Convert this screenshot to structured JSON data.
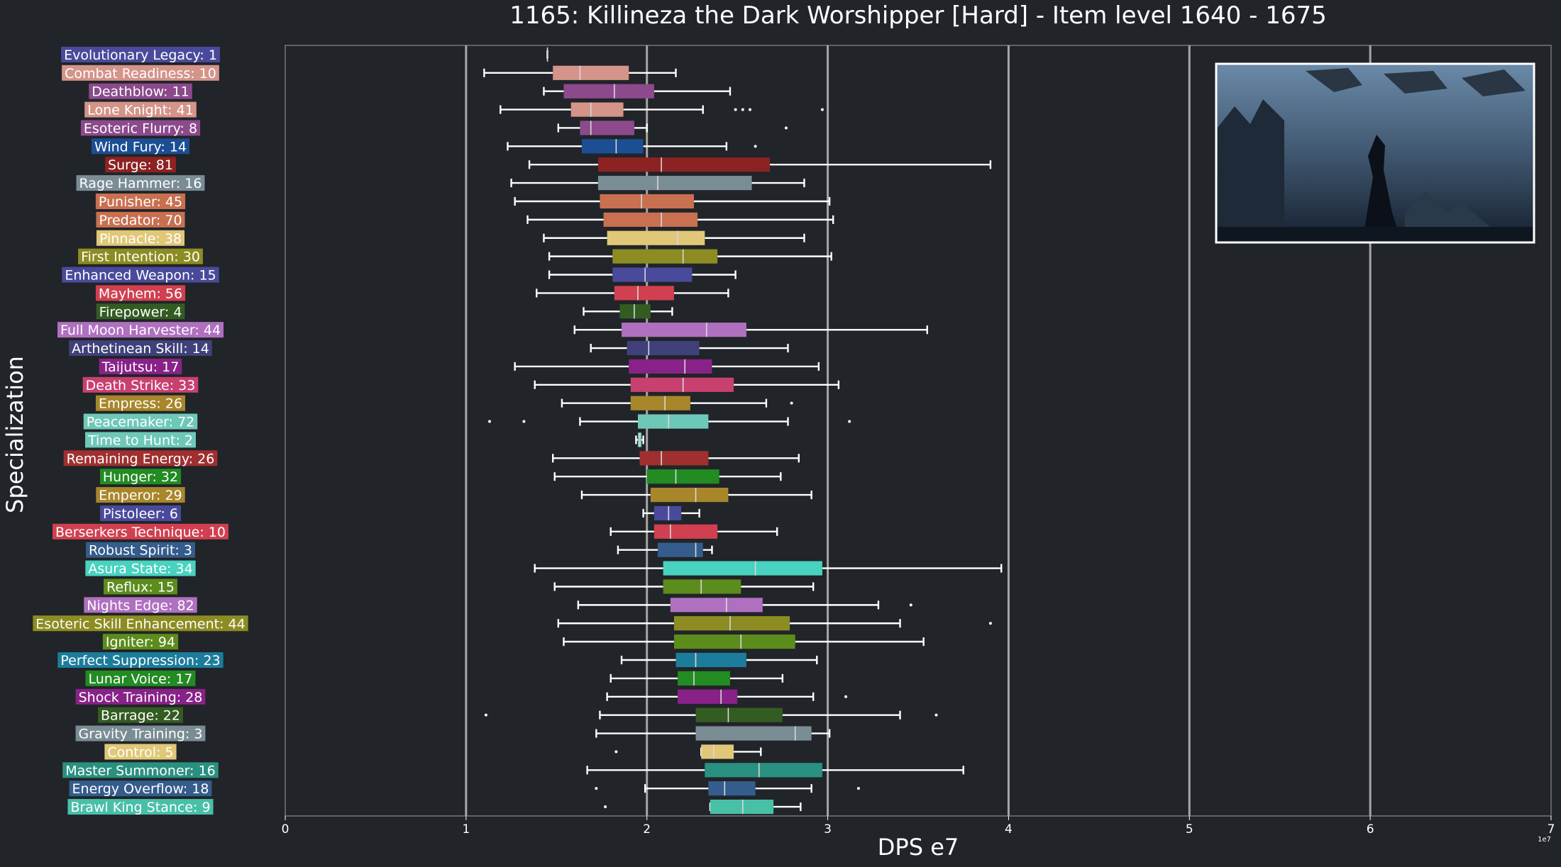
{
  "chart_data": {
    "type": "box",
    "title": "1165: Killineza the Dark Worshipper [Hard] - Item level 1640 - 1675",
    "xlabel": "DPS e7",
    "ylabel": "Specialization",
    "x_multiplier_label": "1e7",
    "xlim": [
      0,
      7
    ],
    "xticks": [
      0,
      1,
      2,
      3,
      4,
      5,
      6,
      7
    ],
    "grid": "vertical",
    "colors": {
      "background": "#212428",
      "grid": "#a6a6a6",
      "whisker": "#ffffff"
    },
    "inset_image": "boss-screenshot",
    "series": [
      {
        "label": "Evolutionary Legacy: 1",
        "color": "#4a4a9c",
        "q1": 1.45,
        "median": 1.45,
        "q3": 1.45,
        "whislo": 1.45,
        "whishi": 1.45,
        "fliers": []
      },
      {
        "label": "Combat Readiness: 10",
        "color": "#d4948a",
        "q1": 1.48,
        "median": 1.63,
        "q3": 1.9,
        "whislo": 1.1,
        "whishi": 2.16,
        "fliers": []
      },
      {
        "label": "Deathblow: 11",
        "color": "#8c4a8c",
        "q1": 1.54,
        "median": 1.82,
        "q3": 2.04,
        "whislo": 1.43,
        "whishi": 2.46,
        "fliers": []
      },
      {
        "label": "Lone Knight: 41",
        "color": "#d4948a",
        "q1": 1.58,
        "median": 1.69,
        "q3": 1.87,
        "whislo": 1.19,
        "whishi": 2.31,
        "fliers": [
          2.49,
          2.53,
          2.57,
          2.97
        ]
      },
      {
        "label": "Esoteric Flurry: 8",
        "color": "#8c4a8c",
        "q1": 1.63,
        "median": 1.69,
        "q3": 1.93,
        "whislo": 1.51,
        "whishi": 2.0,
        "fliers": [
          2.77
        ]
      },
      {
        "label": "Wind Fury: 14",
        "color": "#1c4e94",
        "q1": 1.64,
        "median": 1.83,
        "q3": 1.98,
        "whislo": 1.23,
        "whishi": 2.44,
        "fliers": [
          2.6
        ]
      },
      {
        "label": "Surge: 81",
        "color": "#8c2222",
        "q1": 1.73,
        "median": 2.08,
        "q3": 2.68,
        "whislo": 1.35,
        "whishi": 3.9,
        "fliers": []
      },
      {
        "label": "Rage Hammer: 16",
        "color": "#7a8c94",
        "q1": 1.73,
        "median": 2.06,
        "q3": 2.58,
        "whislo": 1.25,
        "whishi": 2.87,
        "fliers": []
      },
      {
        "label": "Punisher: 45",
        "color": "#c87050",
        "q1": 1.74,
        "median": 1.97,
        "q3": 2.26,
        "whislo": 1.27,
        "whishi": 3.01,
        "fliers": []
      },
      {
        "label": "Predator: 70",
        "color": "#c87050",
        "q1": 1.76,
        "median": 2.08,
        "q3": 2.28,
        "whislo": 1.34,
        "whishi": 3.03,
        "fliers": []
      },
      {
        "label": "Pinnacle: 38",
        "color": "#e0c878",
        "q1": 1.78,
        "median": 2.17,
        "q3": 2.32,
        "whislo": 1.43,
        "whishi": 2.87,
        "fliers": []
      },
      {
        "label": "First Intention: 30",
        "color": "#8c8c22",
        "q1": 1.81,
        "median": 2.2,
        "q3": 2.39,
        "whislo": 1.46,
        "whishi": 3.02,
        "fliers": []
      },
      {
        "label": "Enhanced Weapon: 15",
        "color": "#4a4a9c",
        "q1": 1.81,
        "median": 1.99,
        "q3": 2.25,
        "whislo": 1.46,
        "whishi": 2.49,
        "fliers": []
      },
      {
        "label": "Mayhem: 56",
        "color": "#d04050",
        "q1": 1.82,
        "median": 1.95,
        "q3": 2.15,
        "whislo": 1.39,
        "whishi": 2.45,
        "fliers": []
      },
      {
        "label": "Firepower: 4",
        "color": "#335c22",
        "q1": 1.85,
        "median": 1.93,
        "q3": 2.02,
        "whislo": 1.65,
        "whishi": 2.14,
        "fliers": []
      },
      {
        "label": "Full Moon Harvester: 44",
        "color": "#b070c0",
        "q1": 1.86,
        "median": 2.33,
        "q3": 2.55,
        "whislo": 1.6,
        "whishi": 3.55,
        "fliers": []
      },
      {
        "label": "Arthetinean Skill: 14",
        "color": "#40407a",
        "q1": 1.89,
        "median": 2.01,
        "q3": 2.29,
        "whislo": 1.69,
        "whishi": 2.78,
        "fliers": []
      },
      {
        "label": "Taijutsu: 17",
        "color": "#882288",
        "q1": 1.9,
        "median": 2.21,
        "q3": 2.36,
        "whislo": 1.27,
        "whishi": 2.95,
        "fliers": []
      },
      {
        "label": "Death Strike: 33",
        "color": "#c84070",
        "q1": 1.91,
        "median": 2.2,
        "q3": 2.48,
        "whislo": 1.38,
        "whishi": 3.06,
        "fliers": []
      },
      {
        "label": "Empress: 26",
        "color": "#a8862a",
        "q1": 1.91,
        "median": 2.1,
        "q3": 2.24,
        "whislo": 1.53,
        "whishi": 2.66,
        "fliers": [
          2.8
        ]
      },
      {
        "label": "Peacemaker: 72",
        "color": "#6ec8b8",
        "q1": 1.95,
        "median": 2.12,
        "q3": 2.34,
        "whislo": 1.63,
        "whishi": 2.78,
        "fliers": [
          1.13,
          1.32,
          3.12
        ]
      },
      {
        "label": "Time to Hunt: 2",
        "color": "#6ec8b8",
        "q1": 1.95,
        "median": 1.96,
        "q3": 1.97,
        "whislo": 1.94,
        "whishi": 1.98,
        "fliers": []
      },
      {
        "label": "Remaining Energy: 26",
        "color": "#a03030",
        "q1": 1.96,
        "median": 2.08,
        "q3": 2.34,
        "whislo": 1.48,
        "whishi": 2.84,
        "fliers": []
      },
      {
        "label": "Hunger: 32",
        "color": "#228b22",
        "q1": 2.0,
        "median": 2.16,
        "q3": 2.4,
        "whislo": 1.49,
        "whishi": 2.74,
        "fliers": []
      },
      {
        "label": "Emperor: 29",
        "color": "#a8862a",
        "q1": 2.02,
        "median": 2.27,
        "q3": 2.45,
        "whislo": 1.64,
        "whishi": 2.91,
        "fliers": []
      },
      {
        "label": "Pistoleer: 6",
        "color": "#4a4a9c",
        "q1": 2.04,
        "median": 2.12,
        "q3": 2.19,
        "whislo": 1.98,
        "whishi": 2.29,
        "fliers": []
      },
      {
        "label": "Berserkers Technique: 10",
        "color": "#d04050",
        "q1": 2.04,
        "median": 2.13,
        "q3": 2.39,
        "whislo": 1.8,
        "whishi": 2.72,
        "fliers": []
      },
      {
        "label": "Robust Spirit: 3",
        "color": "#345c8c",
        "q1": 2.06,
        "median": 2.27,
        "q3": 2.31,
        "whislo": 1.84,
        "whishi": 2.36,
        "fliers": []
      },
      {
        "label": "Asura State: 34",
        "color": "#48d2c0",
        "q1": 2.09,
        "median": 2.6,
        "q3": 2.97,
        "whislo": 1.38,
        "whishi": 3.96,
        "fliers": []
      },
      {
        "label": "Reflux: 15",
        "color": "#5c8c1c",
        "q1": 2.09,
        "median": 2.3,
        "q3": 2.52,
        "whislo": 1.49,
        "whishi": 2.92,
        "fliers": []
      },
      {
        "label": "Nights Edge: 82",
        "color": "#b070c0",
        "q1": 2.13,
        "median": 2.44,
        "q3": 2.64,
        "whislo": 1.62,
        "whishi": 3.28,
        "fliers": [
          3.46
        ]
      },
      {
        "label": "Esoteric Skill Enhancement: 44",
        "color": "#8c8c22",
        "q1": 2.15,
        "median": 2.46,
        "q3": 2.79,
        "whislo": 1.51,
        "whishi": 3.4,
        "fliers": [
          3.9
        ]
      },
      {
        "label": "Igniter: 94",
        "color": "#5c8c1c",
        "q1": 2.15,
        "median": 2.52,
        "q3": 2.82,
        "whislo": 1.54,
        "whishi": 3.53,
        "fliers": []
      },
      {
        "label": "Perfect Suppression: 23",
        "color": "#1c7c9c",
        "q1": 2.16,
        "median": 2.27,
        "q3": 2.55,
        "whislo": 1.86,
        "whishi": 2.94,
        "fliers": []
      },
      {
        "label": "Lunar Voice: 17",
        "color": "#228b22",
        "q1": 2.17,
        "median": 2.26,
        "q3": 2.46,
        "whislo": 1.8,
        "whishi": 2.75,
        "fliers": []
      },
      {
        "label": "Shock Training: 28",
        "color": "#882288",
        "q1": 2.17,
        "median": 2.41,
        "q3": 2.5,
        "whislo": 1.78,
        "whishi": 2.92,
        "fliers": [
          3.1
        ]
      },
      {
        "label": "Barrage: 22",
        "color": "#335c22",
        "q1": 2.27,
        "median": 2.45,
        "q3": 2.75,
        "whislo": 1.74,
        "whishi": 3.4,
        "fliers": [
          1.11,
          3.6
        ]
      },
      {
        "label": "Gravity Training: 3",
        "color": "#7a8c94",
        "q1": 2.27,
        "median": 2.82,
        "q3": 2.91,
        "whislo": 1.72,
        "whishi": 3.01,
        "fliers": []
      },
      {
        "label": "Control: 5",
        "color": "#e0c878",
        "q1": 2.3,
        "median": 2.37,
        "q3": 2.48,
        "whislo": 2.3,
        "whishi": 2.63,
        "fliers": [
          1.83
        ]
      },
      {
        "label": "Master Summoner: 16",
        "color": "#2a9080",
        "q1": 2.32,
        "median": 2.62,
        "q3": 2.97,
        "whislo": 1.67,
        "whishi": 3.75,
        "fliers": []
      },
      {
        "label": "Energy Overflow: 18",
        "color": "#345c8c",
        "q1": 2.34,
        "median": 2.43,
        "q3": 2.6,
        "whislo": 1.99,
        "whishi": 2.91,
        "fliers": [
          1.72,
          3.17
        ]
      },
      {
        "label": "Brawl King Stance: 9",
        "color": "#48c0a8",
        "q1": 2.35,
        "median": 2.53,
        "q3": 2.7,
        "whislo": 2.35,
        "whishi": 2.85,
        "fliers": [
          1.77
        ]
      }
    ]
  }
}
